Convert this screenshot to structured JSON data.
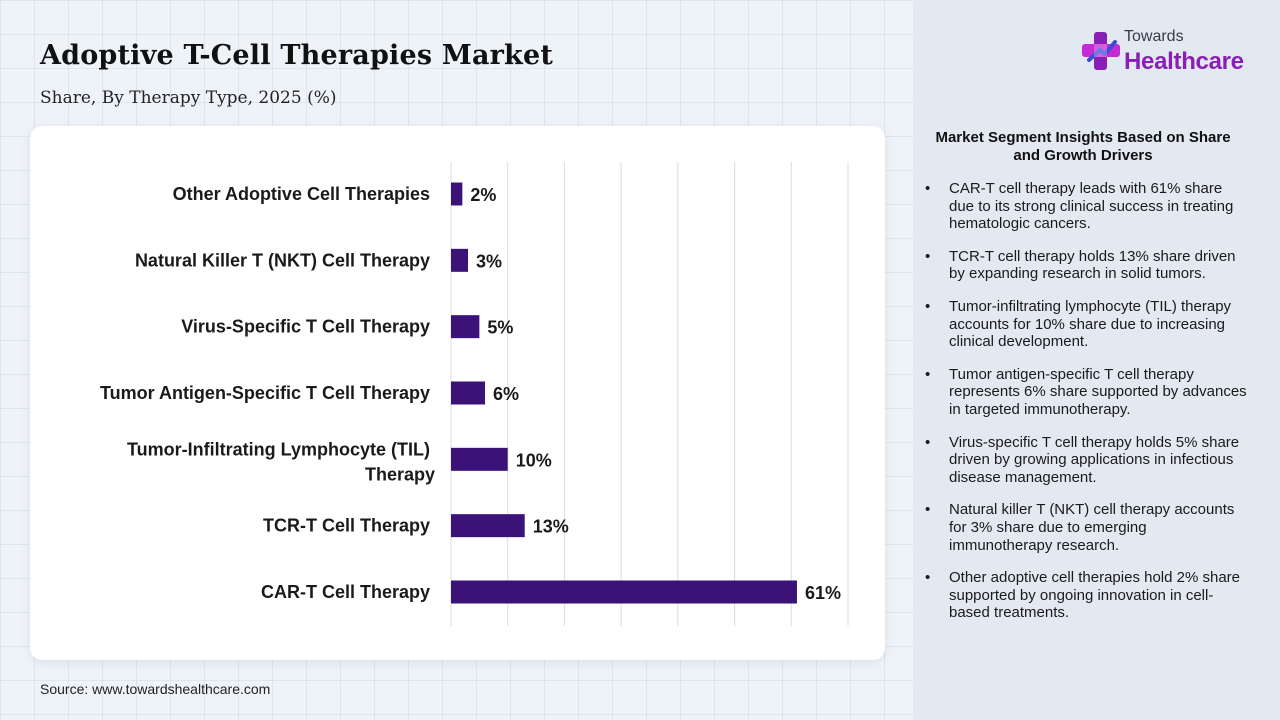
{
  "header": {
    "title": "Adoptive T-Cell Therapies Market",
    "subtitle": "Share, By Therapy Type, 2025 (%)"
  },
  "brand": {
    "top": "Towards",
    "bottom": "Healthcare",
    "colors": {
      "purple": "#8a1fb8",
      "magenta": "#c42ad6",
      "blue": "#3d4bd6"
    }
  },
  "chart_data": {
    "type": "bar",
    "orientation": "horizontal",
    "categories": [
      "Other Adoptive Cell Therapies",
      "Natural Killer T (NKT) Cell Therapy",
      "Virus-Specific T Cell Therapy",
      "Tumor Antigen-Specific T Cell Therapy",
      "Tumor-Infiltrating Lymphocyte (TIL) Therapy",
      "TCR-T Cell Therapy",
      "CAR-T Cell Therapy"
    ],
    "values": [
      2,
      3,
      5,
      6,
      10,
      13,
      61
    ],
    "labels": [
      "2%",
      "3%",
      "5%",
      "6%",
      "10%",
      "13%",
      "61%"
    ],
    "xlim": [
      0,
      70
    ],
    "grid": true,
    "bar_color": "#3a1278"
  },
  "insights": {
    "heading": "Market Segment Insights Based on Share and Growth Drivers",
    "items": [
      "CAR-T cell therapy leads with 61% share due to its strong clinical success in treating hematologic cancers.",
      "TCR-T cell therapy holds 13% share driven by expanding research in solid tumors.",
      "Tumor-infiltrating lymphocyte (TIL) therapy accounts for 10% share due to increasing clinical development.",
      "Tumor antigen-specific T cell therapy represents 6% share supported by advances in targeted immunotherapy.",
      "Virus-specific T cell therapy holds 5% share driven by growing applications in infectious disease management.",
      "Natural killer T (NKT) cell therapy accounts for 3% share due to emerging immunotherapy research.",
      "Other adoptive cell therapies hold 2% share supported by ongoing innovation in cell-based treatments."
    ]
  },
  "source": "Source: www.towardshealthcare.com"
}
